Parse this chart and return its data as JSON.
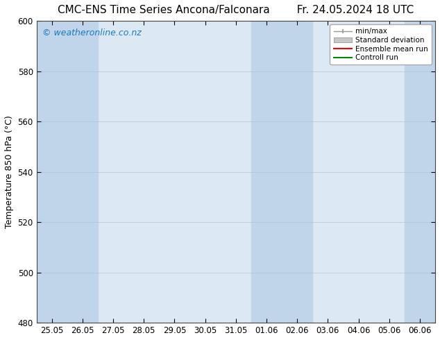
{
  "title": "CMC-ENS Time Series Ancona/Falconara     Fr. 24.05.2024 18 UTC",
  "ylabel": "Temperature 850 hPa (°C)",
  "watermark": "© weatheronline.co.nz",
  "watermark_color": "#1a7abf",
  "ylim": [
    480,
    600
  ],
  "yticks": [
    480,
    500,
    520,
    540,
    560,
    580,
    600
  ],
  "xtick_labels": [
    "25.05",
    "26.05",
    "27.05",
    "28.05",
    "29.05",
    "30.05",
    "31.05",
    "01.06",
    "02.06",
    "03.06",
    "04.06",
    "05.06",
    "06.06"
  ],
  "x_values": [
    0,
    1,
    2,
    3,
    4,
    5,
    6,
    7,
    8,
    9,
    10,
    11,
    12
  ],
  "background_color": "#ffffff",
  "plot_bg_color": "#dce9f5",
  "shaded_columns": [
    0,
    1,
    7,
    8,
    12
  ],
  "shaded_color": "#c0d4ea",
  "legend_entries": [
    "min/max",
    "Standard deviation",
    "Ensemble mean run",
    "Controll run"
  ],
  "legend_colors_line": [
    "#999999",
    "#aaaaaa",
    "#ff0000",
    "#008800"
  ],
  "title_fontsize": 11,
  "axis_fontsize": 9,
  "tick_fontsize": 8.5,
  "watermark_fontsize": 9,
  "grid_color": "#b0c4d8"
}
